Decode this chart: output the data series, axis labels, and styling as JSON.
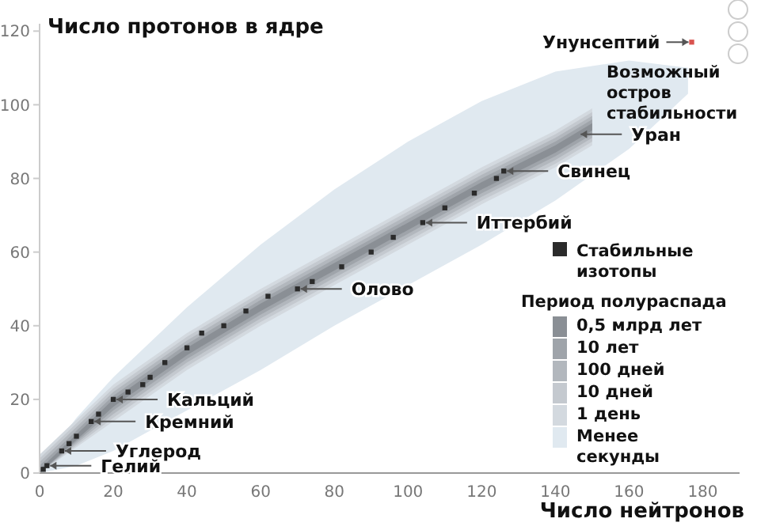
{
  "chart_data": {
    "type": "line",
    "ylabel": "Число протонов в ядре",
    "xlabel": "Число нейтронов",
    "legend_title": "Период полураспада",
    "xlim": [
      0,
      190
    ],
    "ylim": [
      0,
      122
    ],
    "xticks": [
      0,
      20,
      40,
      60,
      80,
      100,
      120,
      140,
      160,
      180
    ],
    "yticks": [
      0,
      20,
      40,
      60,
      80,
      100,
      120
    ],
    "legend": "bottom right",
    "series": [
      {
        "name": "Менее секунды",
        "color": "#e0e9f0",
        "x": [
          0,
          10,
          20,
          40,
          60,
          80,
          100,
          120,
          140,
          160,
          176
        ],
        "values": [
          null,
          null,
          null,
          null,
          null,
          null,
          null,
          null,
          null,
          null,
          null
        ],
        "lower": [
          0,
          2,
          6,
          17,
          28,
          40,
          51,
          62,
          74,
          88,
          103
        ],
        "upper": [
          2,
          15,
          26,
          45,
          62,
          77,
          90,
          101,
          109,
          112,
          110
        ]
      },
      {
        "name": "1 день",
        "color": "#d3d9df",
        "x": [
          0,
          20,
          40,
          60,
          80,
          100,
          120,
          140,
          150
        ],
        "values": [
          null,
          null,
          null,
          null,
          null,
          null,
          null,
          null,
          null
        ],
        "lower": [
          0,
          14,
          28,
          40,
          51,
          62,
          73,
          83,
          89
        ],
        "upper": [
          5,
          24,
          38,
          50,
          61,
          72,
          83,
          93,
          99
        ]
      },
      {
        "name": "10 дней",
        "color": "#c4c9cf",
        "x": [
          0,
          20,
          40,
          60,
          80,
          100,
          120,
          140,
          150
        ],
        "values": [
          null,
          null,
          null,
          null,
          null,
          null,
          null,
          null,
          null
        ],
        "lower": [
          0,
          15,
          29,
          41,
          52,
          63,
          74,
          84,
          90
        ],
        "upper": [
          4,
          23,
          37,
          49,
          60,
          71,
          82,
          92,
          98
        ]
      },
      {
        "name": "100 дней",
        "color": "#b2b7bd",
        "x": [
          0,
          20,
          40,
          60,
          80,
          100,
          120,
          140,
          150
        ],
        "values": [
          null,
          null,
          null,
          null,
          null,
          null,
          null,
          null,
          null
        ],
        "lower": [
          0,
          16,
          30,
          42,
          53,
          64,
          75,
          85,
          91
        ],
        "upper": [
          3,
          22,
          36,
          48,
          59,
          70,
          81,
          91,
          97
        ]
      },
      {
        "name": "10 лет",
        "color": "#9fa4aa",
        "x": [
          0,
          20,
          40,
          60,
          80,
          100,
          120,
          140,
          150
        ],
        "values": [
          null,
          null,
          null,
          null,
          null,
          null,
          null,
          null,
          null
        ],
        "lower": [
          0,
          17,
          31,
          43,
          54,
          65,
          76,
          86,
          92
        ],
        "upper": [
          2,
          21,
          35,
          47,
          58,
          69,
          80,
          90,
          96
        ]
      },
      {
        "name": "0,5 млрд лет",
        "color": "#8a8f95",
        "x": [
          0,
          20,
          40,
          60,
          80,
          100,
          120,
          140,
          150
        ],
        "values": [
          null,
          null,
          null,
          null,
          null,
          null,
          null,
          null,
          null
        ],
        "lower": [
          0,
          18,
          32,
          44,
          55,
          66,
          77,
          87,
          93
        ],
        "upper": [
          1,
          20,
          34,
          46,
          57,
          68,
          79,
          89,
          95
        ]
      },
      {
        "name": "Стабильные изотопы",
        "type": "scatter",
        "marker": "square",
        "color": "#2b2b2b",
        "x": [
          1,
          2,
          6,
          8,
          10,
          14,
          16,
          20,
          24,
          28,
          30,
          34,
          40,
          44,
          50,
          56,
          62,
          70,
          74,
          82,
          90,
          96,
          104,
          110,
          118,
          124,
          126
        ],
        "values": [
          1,
          2,
          6,
          8,
          10,
          14,
          16,
          20,
          22,
          24,
          26,
          30,
          34,
          38,
          40,
          44,
          48,
          50,
          52,
          56,
          60,
          64,
          68,
          72,
          76,
          80,
          82
        ]
      },
      {
        "type": "scatter",
        "marker": "square",
        "color": "#d9534f",
        "x": [
          177
        ],
        "values": [
          117
        ]
      }
    ],
    "annotations": [
      {
        "text": "Гелий",
        "x": 2,
        "y": 2
      },
      {
        "text": "Углерод",
        "x": 6,
        "y": 6
      },
      {
        "text": "Кремний",
        "x": 14,
        "y": 14
      },
      {
        "text": "Кальций",
        "x": 20,
        "y": 20
      },
      {
        "text": "Олово",
        "x": 70,
        "y": 50
      },
      {
        "text": "Иттербий",
        "x": 104,
        "y": 68
      },
      {
        "text": "Свинец",
        "x": 126,
        "y": 82
      },
      {
        "text": "Уран",
        "x": 146,
        "y": 92
      },
      {
        "text": "Унунсептий",
        "x": 177,
        "y": 117
      },
      "Возможный остров стабильности"
    ]
  }
}
